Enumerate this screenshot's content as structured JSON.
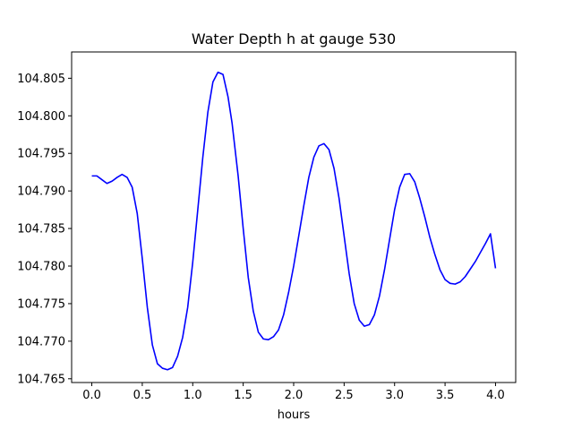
{
  "chart_data": {
    "type": "line",
    "title": "Water Depth h at gauge 530",
    "xlabel": "hours",
    "ylabel": "",
    "xlim": [
      -0.2,
      4.2
    ],
    "ylim": [
      104.7645,
      104.8085
    ],
    "xticks": [
      0.0,
      0.5,
      1.0,
      1.5,
      2.0,
      2.5,
      3.0,
      3.5,
      4.0
    ],
    "xtick_labels": [
      "0.0",
      "0.5",
      "1.0",
      "1.5",
      "2.0",
      "2.5",
      "3.0",
      "3.5",
      "4.0"
    ],
    "yticks": [
      104.765,
      104.77,
      104.775,
      104.78,
      104.785,
      104.79,
      104.795,
      104.8,
      104.805
    ],
    "ytick_labels": [
      "104.765",
      "104.770",
      "104.775",
      "104.780",
      "104.785",
      "104.790",
      "104.795",
      "104.800",
      "104.805"
    ],
    "grid": false,
    "series": [
      {
        "color": "#0000ff",
        "x": [
          0.0,
          0.05,
          0.1,
          0.15,
          0.2,
          0.25,
          0.3,
          0.35,
          0.4,
          0.45,
          0.5,
          0.55,
          0.6,
          0.65,
          0.7,
          0.75,
          0.8,
          0.85,
          0.9,
          0.95,
          1.0,
          1.05,
          1.1,
          1.15,
          1.2,
          1.25,
          1.3,
          1.35,
          1.39,
          1.45,
          1.5,
          1.55,
          1.6,
          1.65,
          1.7,
          1.75,
          1.8,
          1.85,
          1.9,
          1.95,
          2.0,
          2.05,
          2.1,
          2.15,
          2.2,
          2.25,
          2.3,
          2.35,
          2.4,
          2.45,
          2.5,
          2.55,
          2.6,
          2.65,
          2.7,
          2.75,
          2.8,
          2.85,
          2.9,
          2.95,
          3.0,
          3.05,
          3.1,
          3.15,
          3.2,
          3.25,
          3.3,
          3.35,
          3.4,
          3.45,
          3.5,
          3.55,
          3.6,
          3.65,
          3.7,
          3.75,
          3.8,
          3.85,
          3.9,
          3.95,
          4.0
        ],
        "y": [
          104.792,
          104.792,
          104.7915,
          104.791,
          104.7913,
          104.7918,
          104.7922,
          104.7918,
          104.7905,
          104.787,
          104.781,
          104.7745,
          104.7695,
          104.767,
          104.7664,
          104.7662,
          104.7665,
          104.768,
          104.7705,
          104.7745,
          104.7805,
          104.7875,
          104.7945,
          104.8005,
          104.8045,
          104.8058,
          104.8055,
          104.8025,
          104.799,
          104.792,
          104.785,
          104.7785,
          104.774,
          104.7712,
          104.7703,
          104.7702,
          104.7706,
          104.7715,
          104.7735,
          104.7765,
          104.78,
          104.784,
          104.788,
          104.7918,
          104.7945,
          104.796,
          104.7963,
          104.7955,
          104.793,
          104.789,
          104.784,
          104.779,
          104.775,
          104.7728,
          104.772,
          104.7722,
          104.7735,
          104.776,
          104.7795,
          104.7835,
          104.7875,
          104.7905,
          104.7922,
          104.7923,
          104.7912,
          104.789,
          104.7865,
          104.7838,
          104.7815,
          104.7795,
          104.7782,
          104.7777,
          104.7776,
          104.7779,
          104.7786,
          104.7796,
          104.7806,
          104.7818,
          104.783,
          104.7843,
          104.7797
        ]
      }
    ]
  }
}
